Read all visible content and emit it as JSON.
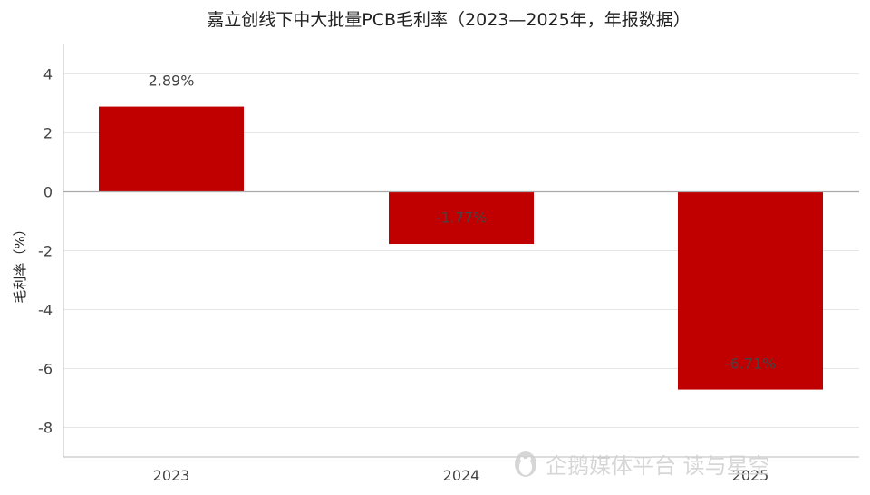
{
  "chart_data": {
    "type": "bar",
    "title": "嘉立创线下中大批量PCB毛利率（2023—2025年，年报数据）",
    "xlabel": "",
    "ylabel": "毛利率（%）",
    "categories": [
      "2023",
      "2024",
      "2025"
    ],
    "values": [
      2.89,
      -1.77,
      -6.71
    ],
    "data_labels": [
      "2.89%",
      "-1.77%",
      "-6.71%"
    ],
    "ylim": [
      -9,
      5
    ],
    "yticks": [
      -8,
      -6,
      -4,
      -2,
      0,
      2,
      4
    ],
    "grid": true,
    "legend": "none",
    "bar_color": "#c00000"
  },
  "watermark": {
    "text": "企鹅媒体平台 读与星空",
    "icon": "penguin-logo-icon"
  }
}
